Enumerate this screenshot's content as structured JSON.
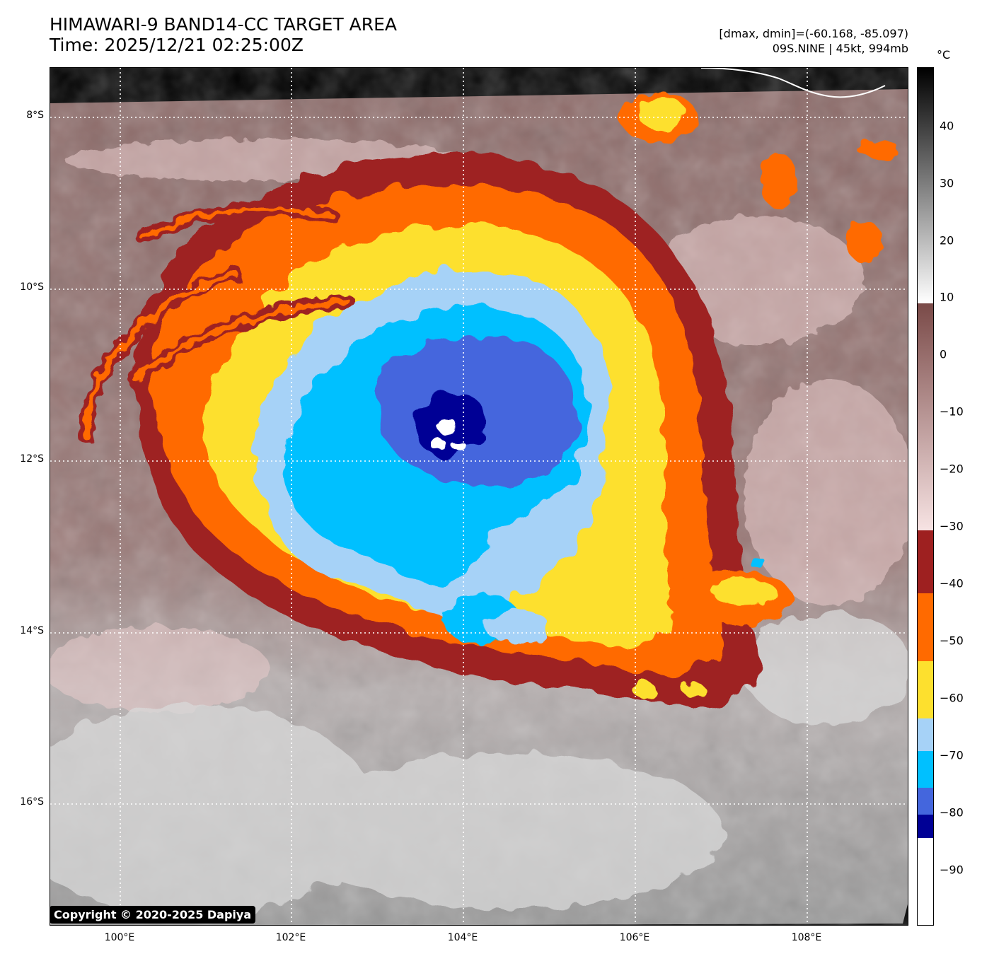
{
  "header": {
    "title_line1": "HIMAWARI-9 BAND14-CC TARGET AREA",
    "title_line2": "Time: 2025/12/21 02:25:00Z",
    "range_text": "[dmax, dmin]=(-60.168, -85.097)",
    "storm_text": "09S.NINE | 45kt, 994mb"
  },
  "map": {
    "lat_labels": [
      "8°S",
      "10°S",
      "12°S",
      "14°S",
      "16°S"
    ],
    "lon_labels": [
      "100°E",
      "102°E",
      "104°E",
      "106°E",
      "108°E"
    ],
    "copyright": "Copyright © 2020-2025 Dapiya"
  },
  "colorbar": {
    "unit": "°C",
    "labels": [
      "40",
      "30",
      "20",
      "10",
      "0",
      "−10",
      "−20",
      "−30",
      "−40",
      "−50",
      "−60",
      "−70",
      "−80",
      "−90"
    ],
    "colors": {
      "bw_warm_top": "#000000",
      "bw_warm_bottom": "#ffffff",
      "brown": "#7a4a48",
      "pink": "#f2dada",
      "darkred": "#9e2020",
      "orange": "#ff6a00",
      "yellow": "#fde02e",
      "lightblue": "#a6d2f7",
      "cyan": "#00c0ff",
      "royalblue": "#4466dd",
      "navy": "#000095",
      "white": "#ffffff"
    }
  },
  "storm": {
    "name": "09S.NINE",
    "center_lon": 103.9,
    "center_lat": -11.9
  }
}
